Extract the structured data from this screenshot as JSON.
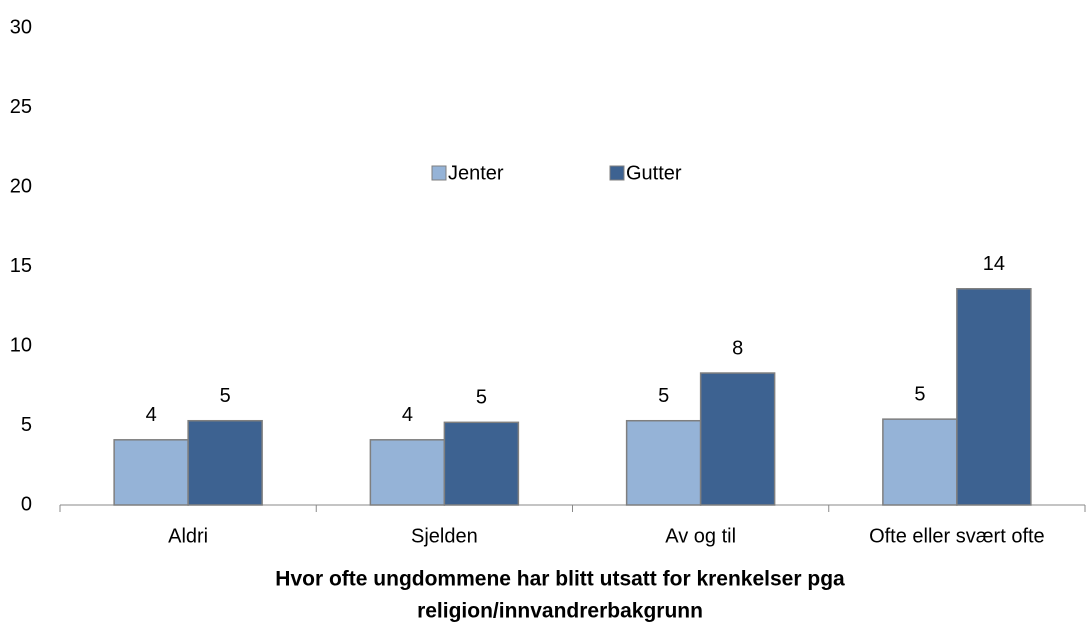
{
  "chart_data": {
    "type": "bar",
    "categories": [
      "Aldri",
      "Sjelden",
      "Av og til",
      "Ofte eller svært ofte"
    ],
    "series": [
      {
        "name": "Jenter",
        "color": "#95b3d7",
        "values": [
          4.1,
          4.1,
          5.3,
          5.4
        ],
        "value_labels": [
          "4",
          "4",
          "5",
          "5"
        ]
      },
      {
        "name": "Gutter",
        "color": "#3d6291",
        "values": [
          5.3,
          5.2,
          8.3,
          13.6
        ],
        "value_labels": [
          "5",
          "5",
          "8",
          "14"
        ]
      }
    ],
    "xlabel": [
      "Hvor ofte ungdommene har blitt utsatt for krenkelser pga",
      "religion/innvandrerbakgrunn"
    ],
    "ylim": [
      0,
      30
    ],
    "yticks": [
      0,
      5,
      10,
      15,
      20,
      25,
      30
    ],
    "grid": false,
    "legend": "top"
  }
}
